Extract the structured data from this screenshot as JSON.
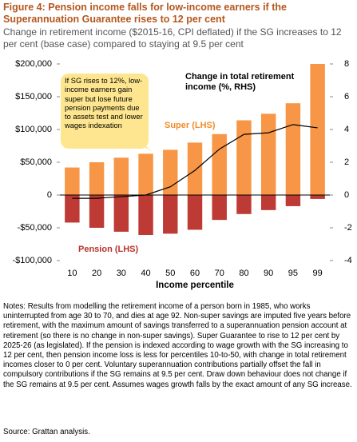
{
  "chart_data": {
    "type": "bar",
    "title": "Figure 4: Pension income falls for low-income earners if the Superannuation Guarantee rises to 12 per cent",
    "subtitle": "Change in retirement income ($2015-16, CPI deflated) if the SG increases to 12 per cent (base case) compared to staying at 9.5 per cent",
    "x_label": "Income percentile",
    "categories": [
      "10",
      "20",
      "30",
      "40",
      "50",
      "60",
      "70",
      "80",
      "90",
      "95",
      "99"
    ],
    "series": [
      {
        "name": "Super (LHS)",
        "color": "#f79646",
        "values": [
          42000,
          50000,
          57000,
          63000,
          69000,
          80000,
          93000,
          114000,
          124000,
          140000,
          200000
        ]
      },
      {
        "name": "Pension (LHS)",
        "color": "#be3a34",
        "values": [
          -42000,
          -50000,
          -56000,
          -61000,
          -59000,
          -53000,
          -38000,
          -29000,
          -23000,
          -17000,
          -6000
        ]
      },
      {
        "name": "Change in total retirement income (%, RHS)",
        "color": "#000000",
        "type": "line",
        "axis": "y2",
        "values": [
          -0.2,
          -0.2,
          -0.1,
          0,
          0.5,
          1.5,
          2.8,
          3.7,
          3.8,
          4.3,
          4.1
        ]
      }
    ],
    "ylim": [
      -100000,
      200000
    ],
    "yticks": [
      {
        "value": 200000,
        "label": "$200,000"
      },
      {
        "value": 150000,
        "label": "$150,000"
      },
      {
        "value": 100000,
        "label": "$100,000"
      },
      {
        "value": 50000,
        "label": "$50,000"
      },
      0,
      {
        "value": -50000,
        "label": "-$50,000"
      },
      {
        "value": -100000,
        "label": "-$100,000"
      }
    ],
    "y2lim": [
      -4,
      8
    ],
    "y2ticks": [
      8,
      6,
      4,
      2,
      0,
      -2,
      -4
    ],
    "annotation": "If SG rises to 12%, low-income earners gain super but lose future pension payments due to assets test and lower wages indexation",
    "notes": "Notes: Results from modelling the retirement income of a person born in 1985, who works uninterrupted from age 30 to 70, and dies at age 92. Non-super savings are imputed five years before retirement, with the maximum amount of savings transferred to a superannuation pension account at retirement (so there is no change in non-super savings). Super Guarantee to rise to 12 per cent by 2025-26 (as legislated). If the pension is indexed according to wage growth with the SG increasing to 12 per cent, then pension income loss is less for percentiles 10-to-50, with change in total retirement incomes closer to 0 per cent. Voluntary superannuation contributions partially offset the fall in compulsory contributions if the SG remains at 9.5 per cent. Draw down behaviour does not change if the SG remains at 9.5 per cent. Assumes wages growth falls by the exact amount of any SG increase.",
    "source": "Source: Grattan analysis."
  }
}
